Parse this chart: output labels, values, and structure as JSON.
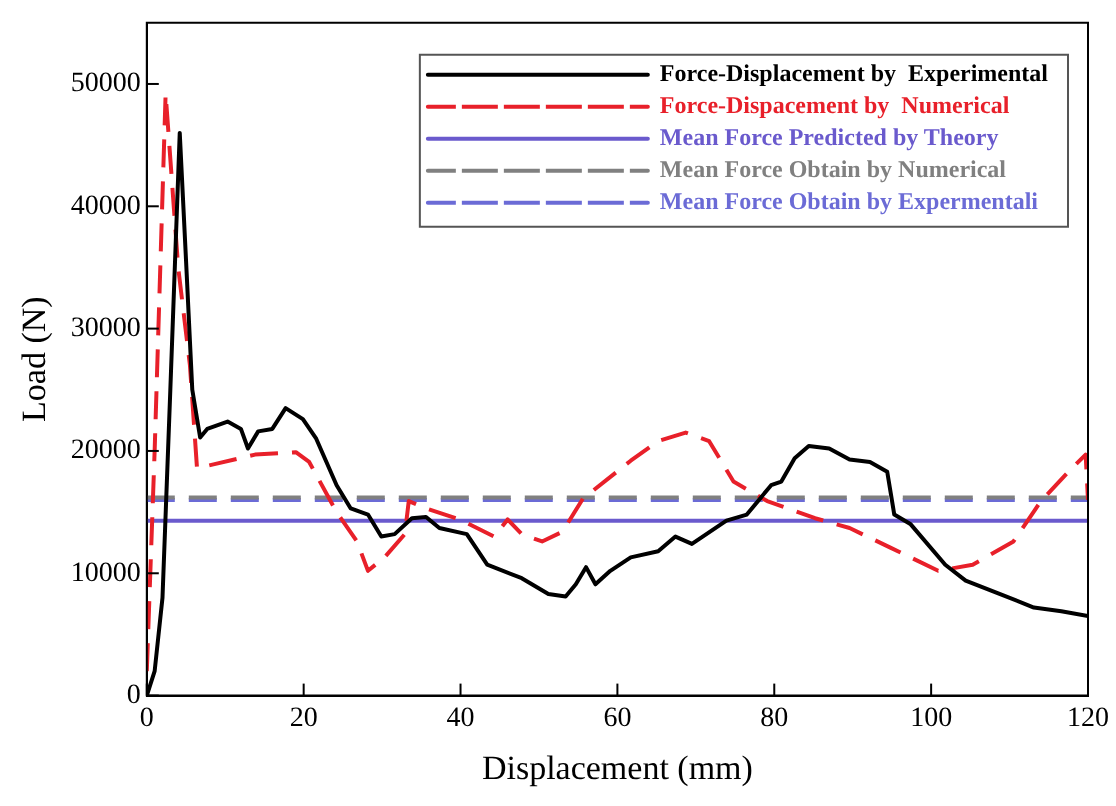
{
  "chart_data": {
    "type": "line",
    "xlabel": "Displacement (mm)",
    "ylabel": "Load (N)",
    "xlim": [
      0,
      120
    ],
    "xticks": [
      0,
      20,
      40,
      60,
      80,
      100,
      120
    ],
    "ylim": [
      0,
      55000
    ],
    "yticks": [
      0,
      10000,
      20000,
      30000,
      40000,
      50000
    ],
    "grid": false,
    "legend": "top right",
    "marker": "none",
    "series": [
      {
        "name": "Force-Displacement by  Experimental",
        "color": "#000000",
        "line_style": "solid",
        "x": [
          0,
          1,
          2,
          3,
          4.2,
          5,
          5.8,
          6.8,
          7.7,
          10.3,
          12,
          12.9,
          14.2,
          16,
          17.7,
          19.9,
          21.6,
          24.2,
          26,
          28.2,
          29.9,
          31.6,
          33.8,
          35.6,
          37.3,
          40.8,
          43.4,
          47.8,
          51.2,
          53.4,
          54.7,
          56,
          57.2,
          59.1,
          61.7,
          65.2,
          67.4,
          69.5,
          73.9,
          76.5,
          79.6,
          80.9,
          82.6,
          84.4,
          87,
          89.6,
          92.2,
          94.4,
          95.3,
          97.4,
          101.8,
          104.4,
          108.8,
          113.1,
          116.6,
          120
        ],
        "values": [
          0,
          2000,
          8000,
          25000,
          46000,
          35600,
          25000,
          21100,
          21800,
          22400,
          21800,
          20200,
          21600,
          21800,
          23500,
          22600,
          21000,
          17200,
          15300,
          14800,
          13000,
          13200,
          14500,
          14600,
          13700,
          13200,
          10700,
          9600,
          8300,
          8100,
          9100,
          10500,
          9100,
          10200,
          11300,
          11800,
          13000,
          12400,
          14300,
          14800,
          17200,
          17500,
          19400,
          20400,
          20200,
          19300,
          19100,
          18300,
          14800,
          14000,
          10700,
          9400,
          8300,
          7200,
          6900,
          6500
        ]
      },
      {
        "name": "Force-Dispacement by  Numerical",
        "color": "#e8202a",
        "line_style": "dashed",
        "x": [
          0,
          1,
          2.4,
          4,
          5.5,
          6.4,
          8.5,
          13.8,
          19,
          20.7,
          24.2,
          26.8,
          28.2,
          30.3,
          32.9,
          33.4,
          35.6,
          39.9,
          44.3,
          46,
          47.8,
          50.4,
          53,
          55.6,
          61.7,
          65.2,
          68.7,
          71.7,
          74.8,
          79.1,
          85.2,
          89.6,
          94.8,
          100.9,
          105.3,
          110.5,
          114,
          117.5,
          119.7,
          120
        ],
        "values": [
          2000,
          20000,
          49200,
          35000,
          27000,
          18600,
          18900,
          19700,
          19900,
          19100,
          15000,
          12600,
          10200,
          11300,
          13200,
          15900,
          15300,
          14400,
          13000,
          14400,
          13200,
          12600,
          13400,
          16100,
          19200,
          20800,
          21500,
          20800,
          17500,
          15900,
          14500,
          13700,
          12100,
          10200,
          10700,
          12600,
          15900,
          18300,
          19700,
          16000
        ]
      },
      {
        "name": "Mean Force Predicted by Theory",
        "color": "#6a5acd",
        "line_style": "solid",
        "x": [
          0,
          120
        ],
        "values": [
          14300,
          14300
        ]
      },
      {
        "name": "Mean Force Obtain by Numerical",
        "color": "#808080",
        "line_style": "dashed",
        "x": [
          0,
          120
        ],
        "values": [
          16200,
          16200
        ]
      },
      {
        "name": "Mean Force Obtain by Expermentali",
        "color": "#6b6bd6",
        "line_style": "dashed",
        "x": [
          0,
          120
        ],
        "values": [
          16000,
          16000
        ]
      }
    ]
  }
}
